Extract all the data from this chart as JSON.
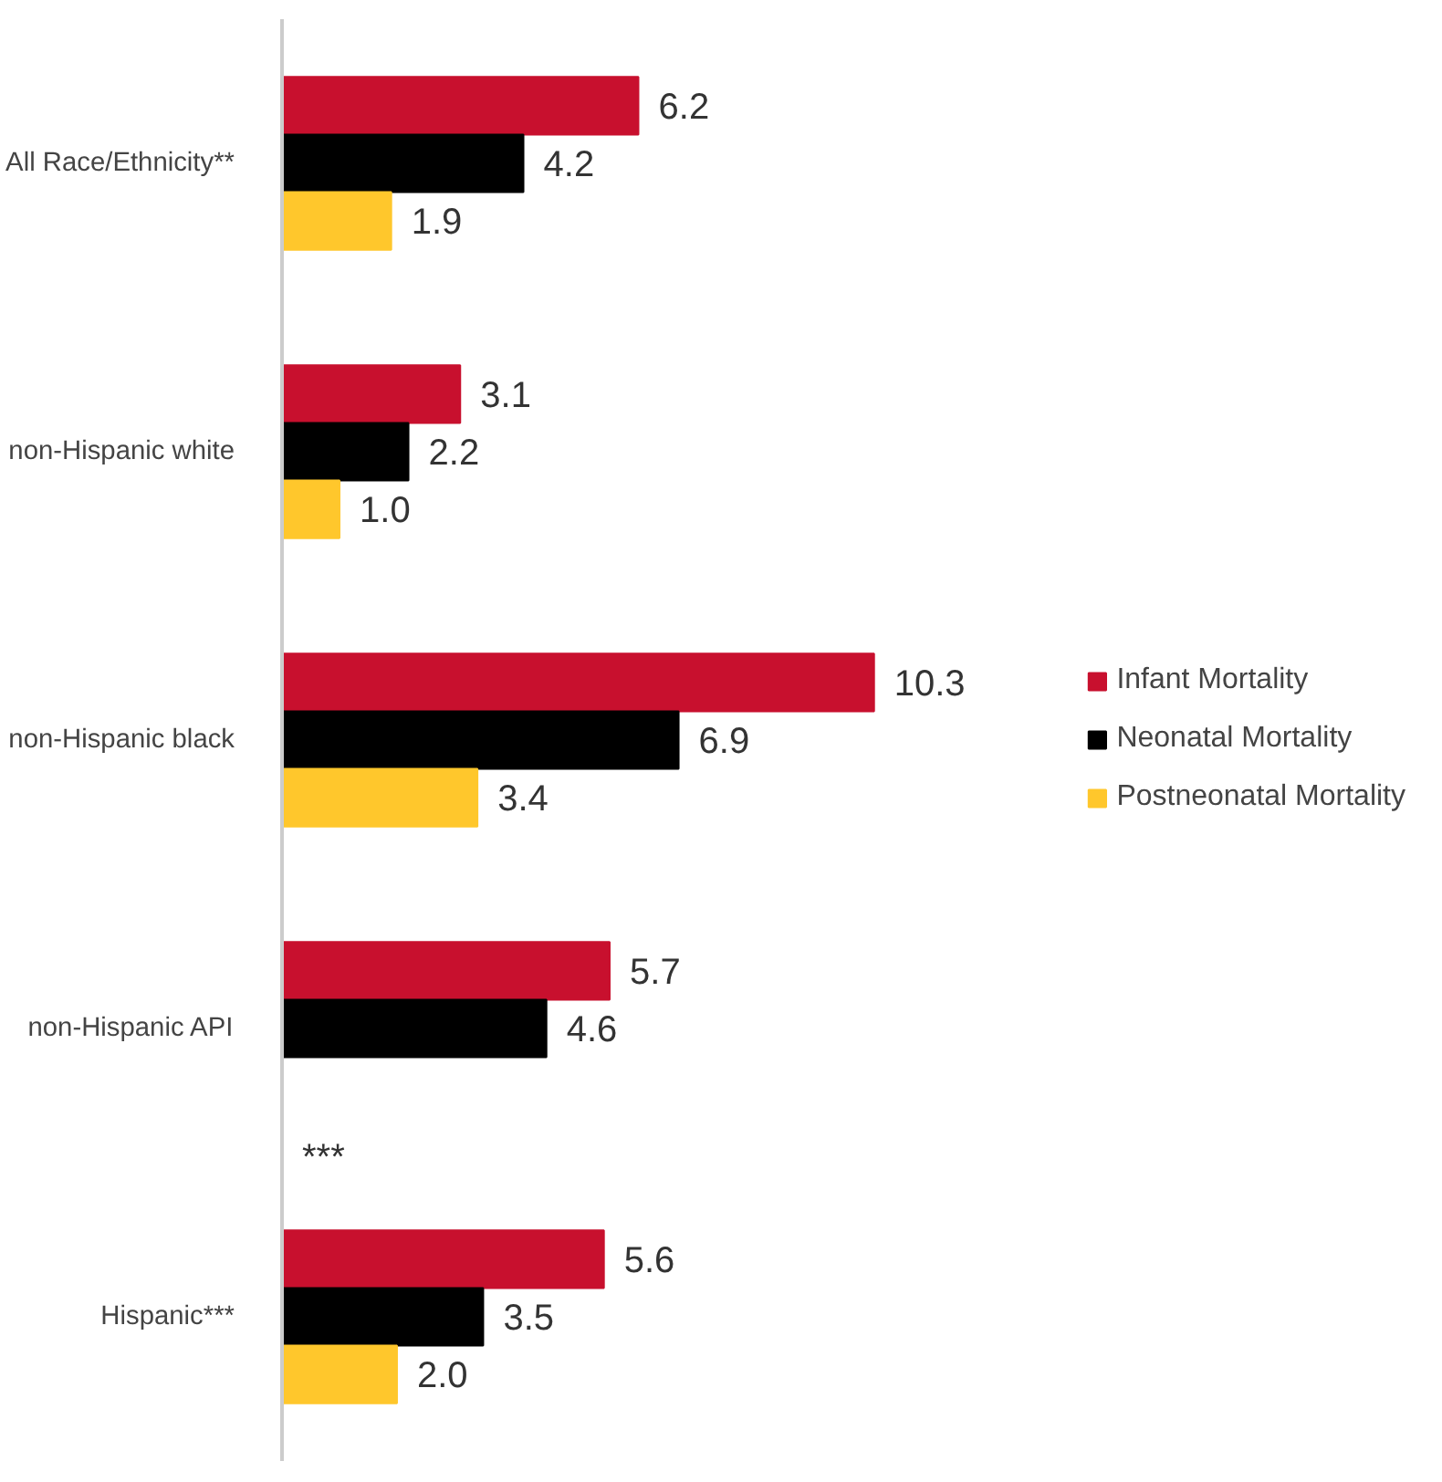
{
  "chart_data": {
    "type": "bar",
    "orientation": "horizontal",
    "categories": [
      "All Race/Ethnicity**",
      "non-Hispanic white",
      "non-Hispanic black",
      "non-Hispanic API",
      "Hispanic***"
    ],
    "series": [
      {
        "name": "Infant Mortality",
        "color": "#c8102e",
        "values": [
          6.2,
          3.1,
          10.3,
          5.7,
          5.6
        ],
        "value_labels": [
          "6.2",
          "3.1",
          "10.3",
          "5.7",
          "5.6"
        ]
      },
      {
        "name": "Neonatal Mortality",
        "color": "#000000",
        "values": [
          4.2,
          2.2,
          6.9,
          4.6,
          3.5
        ],
        "value_labels": [
          "4.2",
          "2.2",
          "6.9",
          "4.6",
          "3.5"
        ]
      },
      {
        "name": "Postneonatal Mortality",
        "color": "#ffc72c",
        "values": [
          1.9,
          1.0,
          3.4,
          null,
          2.0
        ],
        "value_labels": [
          "1.9",
          "1.0",
          "3.4",
          "***",
          "2.0"
        ]
      }
    ],
    "grid": false,
    "legend": "right"
  }
}
